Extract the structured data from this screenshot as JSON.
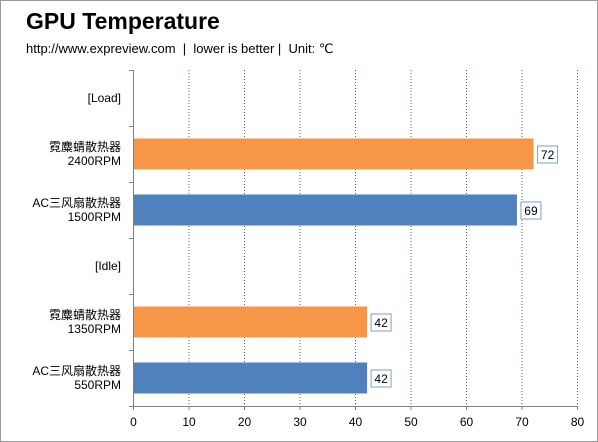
{
  "chart_data": {
    "type": "bar",
    "orientation": "horizontal",
    "title": "GPU Temperature",
    "subtitle": "http://www.expreview.com  |  lower is better |  Unit: ℃",
    "categories": [
      [
        "[Load]"
      ],
      [
        "霓麋蜻散热器",
        "2400RPM"
      ],
      [
        "AC三风扇散热器",
        "1500RPM"
      ],
      [
        "[Idle]"
      ],
      [
        "霓麋蜻散热器",
        "1350RPM"
      ],
      [
        "AC三风扇散热器",
        "550RPM"
      ]
    ],
    "values": [
      null,
      72,
      69,
      null,
      42,
      42
    ],
    "bar_colors": [
      null,
      "#f79646",
      "#4f81bd",
      null,
      "#f79646",
      "#4f81bd"
    ],
    "xlim": [
      0,
      80
    ],
    "xticks": [
      0,
      10,
      20,
      30,
      40,
      50,
      60,
      70,
      80
    ],
    "grid": "vertical-dotted",
    "legend": "none"
  }
}
